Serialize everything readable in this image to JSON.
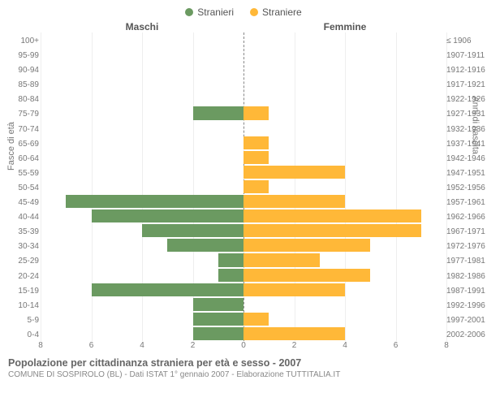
{
  "legend": {
    "male": "Stranieri",
    "female": "Straniere"
  },
  "headers": {
    "left": "Maschi",
    "right": "Femmine"
  },
  "colors": {
    "male": "#6b9a61",
    "female": "#ffb838",
    "grid": "#eeeeee",
    "mid": "#888888"
  },
  "axis": {
    "left_title": "Fasce di età",
    "right_title": "Anni di nascita",
    "max": 8,
    "ticks": [
      8,
      6,
      4,
      2,
      0,
      2,
      4,
      6,
      8
    ]
  },
  "fontsize": {
    "legend": 12,
    "header": 12,
    "labels": 10,
    "axis": 11,
    "caption_title": 12.5,
    "caption_sub": 10
  },
  "rows": [
    {
      "age": "100+",
      "birth": "≤ 1906",
      "m": 0,
      "f": 0
    },
    {
      "age": "95-99",
      "birth": "1907-1911",
      "m": 0,
      "f": 0
    },
    {
      "age": "90-94",
      "birth": "1912-1916",
      "m": 0,
      "f": 0
    },
    {
      "age": "85-89",
      "birth": "1917-1921",
      "m": 0,
      "f": 0
    },
    {
      "age": "80-84",
      "birth": "1922-1926",
      "m": 0,
      "f": 0
    },
    {
      "age": "75-79",
      "birth": "1927-1931",
      "m": 2,
      "f": 1
    },
    {
      "age": "70-74",
      "birth": "1932-1936",
      "m": 0,
      "f": 0
    },
    {
      "age": "65-69",
      "birth": "1937-1941",
      "m": 0,
      "f": 1
    },
    {
      "age": "60-64",
      "birth": "1942-1946",
      "m": 0,
      "f": 1
    },
    {
      "age": "55-59",
      "birth": "1947-1951",
      "m": 0,
      "f": 4
    },
    {
      "age": "50-54",
      "birth": "1952-1956",
      "m": 0,
      "f": 1
    },
    {
      "age": "45-49",
      "birth": "1957-1961",
      "m": 7,
      "f": 4
    },
    {
      "age": "40-44",
      "birth": "1962-1966",
      "m": 6,
      "f": 7
    },
    {
      "age": "35-39",
      "birth": "1967-1971",
      "m": 4,
      "f": 7
    },
    {
      "age": "30-34",
      "birth": "1972-1976",
      "m": 3,
      "f": 5
    },
    {
      "age": "25-29",
      "birth": "1977-1981",
      "m": 1,
      "f": 3
    },
    {
      "age": "20-24",
      "birth": "1982-1986",
      "m": 1,
      "f": 5
    },
    {
      "age": "15-19",
      "birth": "1987-1991",
      "m": 6,
      "f": 4
    },
    {
      "age": "10-14",
      "birth": "1992-1996",
      "m": 2,
      "f": 0
    },
    {
      "age": "5-9",
      "birth": "1997-2001",
      "m": 2,
      "f": 1
    },
    {
      "age": "0-4",
      "birth": "2002-2006",
      "m": 2,
      "f": 4
    }
  ],
  "caption": {
    "title": "Popolazione per cittadinanza straniera per età e sesso - 2007",
    "sub": "COMUNE DI SOSPIROLO (BL) - Dati ISTAT 1° gennaio 2007 - Elaborazione TUTTITALIA.IT"
  }
}
